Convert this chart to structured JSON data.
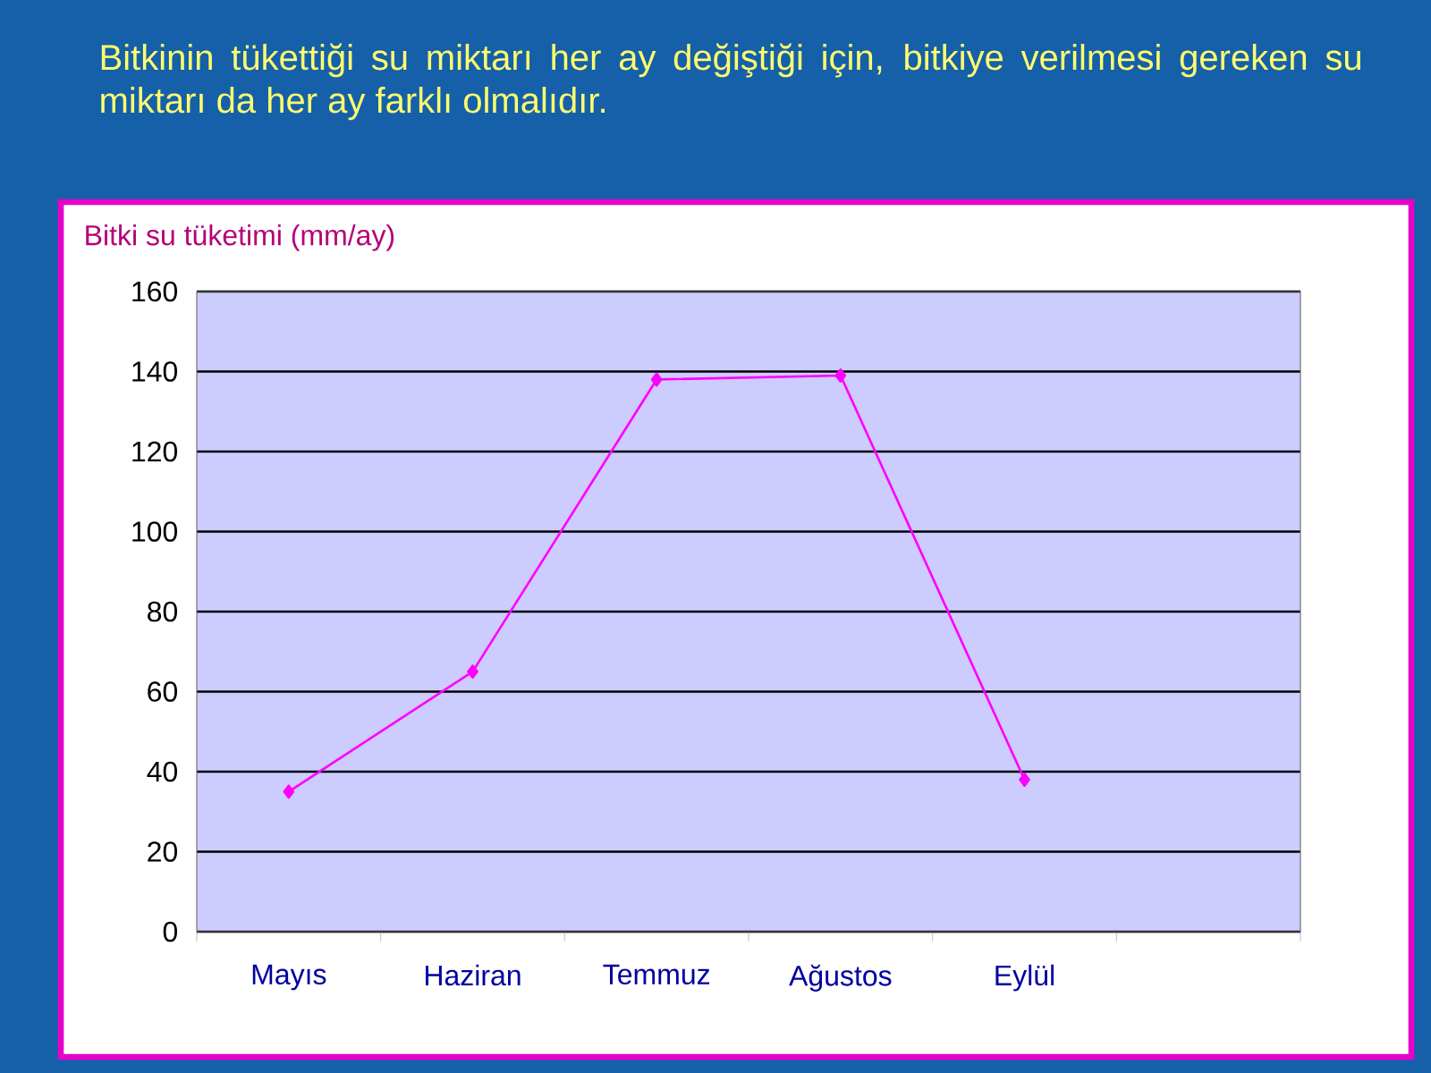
{
  "chart_data": {
    "type": "line",
    "title": "Bitkinin tükettiği su miktarı her ay değiştiği için, bitkiye verilmesi gereken su miktarı da her ay farklı olmalıdır.",
    "ylabel": "Bitki su tüketimi (mm/ay)",
    "categories": [
      "Mayıs",
      "Haziran",
      "Temmuz",
      "Ağustos",
      "Eylül",
      null
    ],
    "values": [
      35,
      65,
      138,
      139,
      38,
      null
    ],
    "color": "#ff00ff",
    "marker": "diamond",
    "line_style": "solid",
    "ylim": [
      0,
      160
    ],
    "yticks": [
      0,
      20,
      40,
      60,
      80,
      100,
      120,
      140,
      160
    ],
    "grid": "y"
  }
}
